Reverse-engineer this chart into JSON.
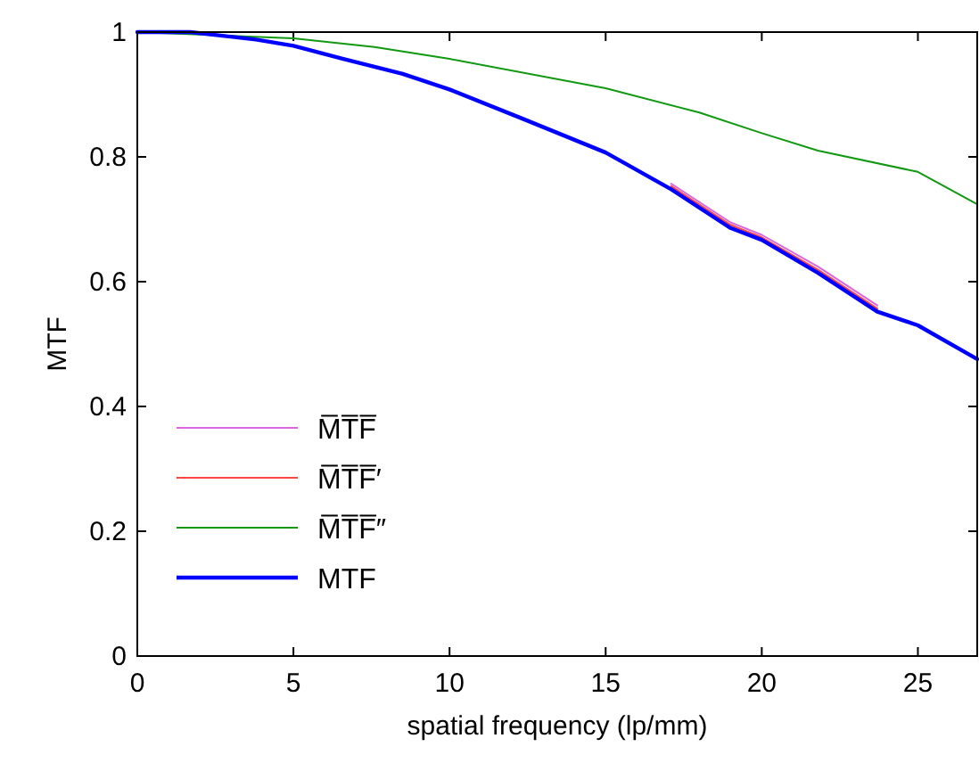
{
  "chart_data": {
    "type": "line",
    "xlabel": "spatial frequency (lp/mm)",
    "ylabel": "MTF",
    "xlim": [
      0,
      26.9
    ],
    "ylim": [
      0,
      1
    ],
    "xticks": [
      0,
      5,
      10,
      15,
      20,
      25
    ],
    "yticks": [
      0,
      0.2,
      0.4,
      0.6,
      0.8,
      1
    ],
    "grid": false,
    "legend": "bottom left",
    "series": [
      {
        "name": "M̅T̅F̅",
        "color": "#dd66dd",
        "x": [
          17.1,
          19,
          20,
          21.8,
          23.7
        ],
        "values": [
          0.757,
          0.695,
          0.675,
          0.624,
          0.562
        ]
      },
      {
        "name": "M̅T̅F̅′",
        "color": "#ff4444",
        "x": [
          17.1,
          19,
          20,
          21.8,
          23.7
        ],
        "values": [
          0.753,
          0.691,
          0.671,
          0.619,
          0.557
        ]
      },
      {
        "name": "M̅T̅F̅″",
        "color": "#119911",
        "x": [
          0,
          5,
          7.6,
          10,
          15,
          18,
          20,
          21.8,
          25,
          26.9
        ],
        "values": [
          1,
          0.99,
          0.976,
          0.957,
          0.91,
          0.871,
          0.838,
          0.81,
          0.776,
          0.724
        ]
      },
      {
        "name": "MTF",
        "color": "#0000ff",
        "x": [
          0,
          1.7,
          3.8,
          5,
          6.6,
          8.5,
          10,
          12.3,
          15,
          17.1,
          19,
          20,
          21.8,
          23.7,
          25,
          26.9
        ],
        "values": [
          1,
          1,
          0.988,
          0.978,
          0.957,
          0.933,
          0.908,
          0.862,
          0.807,
          0.748,
          0.686,
          0.667,
          0.614,
          0.552,
          0.53,
          0.476
        ]
      }
    ]
  }
}
